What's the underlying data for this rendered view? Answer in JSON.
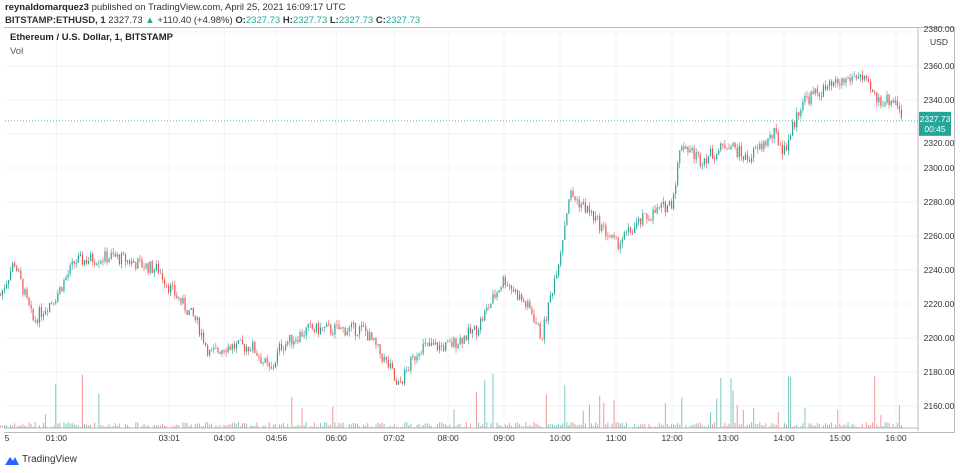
{
  "header": {
    "publisher": "reynaldomarquez3",
    "published_text": "published on TradingView.com, April 25, 2021 16:09:17 UTC",
    "symbol": "BITSTAMP:ETHUSD, 1",
    "last": "2327.73",
    "change": "+110.40 (+4.98%)",
    "o_label": "O:",
    "o": "2327.73",
    "h_label": "H:",
    "h": "2327.73",
    "l_label": "L:",
    "l": "2327.73",
    "c_label": "C:",
    "c": "2327.73"
  },
  "legend": {
    "title": "Ethereum / U.S. Dollar, 1, BITSTAMP",
    "vol": "Vol"
  },
  "price_tag": {
    "price": "2327.73",
    "countdown": "00:45"
  },
  "footer": {
    "brand": "TradingView"
  },
  "colors": {
    "up": "#26a69a",
    "down": "#ef5350",
    "grid": "#f0f3fa"
  },
  "chart_data": {
    "type": "candlestick",
    "title": "Ethereum / U.S. Dollar, 1, BITSTAMP",
    "currency_label": "USD",
    "ylim": [
      2145,
      2385
    ],
    "y_ticks": [
      "2380.00",
      "2360.00",
      "2340.00",
      "2320.00",
      "2300.00",
      "2280.00",
      "2260.00",
      "2240.00",
      "2220.00",
      "2200.00",
      "2180.00",
      "2160.00"
    ],
    "x_ticks": [
      "5",
      "01:00",
      "03:01",
      "04:00",
      "04:56",
      "06:00",
      "07:02",
      "08:00",
      "09:00",
      "10:00",
      "11:00",
      "12:00",
      "13:00",
      "14:00",
      "15:00",
      "16:00"
    ],
    "x_tick_minutes": [
      5,
      60,
      181,
      240,
      296,
      360,
      422,
      480,
      540,
      600,
      660,
      720,
      780,
      840,
      900,
      960
    ],
    "price_path": [
      [
        0,
        2225
      ],
      [
        15,
        2245
      ],
      [
        35,
        2210
      ],
      [
        60,
        2225
      ],
      [
        80,
        2245
      ],
      [
        120,
        2248
      ],
      [
        170,
        2240
      ],
      [
        181,
        2230
      ],
      [
        210,
        2210
      ],
      [
        225,
        2190
      ],
      [
        240,
        2195
      ],
      [
        270,
        2195
      ],
      [
        290,
        2180
      ],
      [
        300,
        2195
      ],
      [
        330,
        2205
      ],
      [
        360,
        2205
      ],
      [
        390,
        2205
      ],
      [
        420,
        2180
      ],
      [
        425,
        2170
      ],
      [
        450,
        2195
      ],
      [
        480,
        2195
      ],
      [
        510,
        2205
      ],
      [
        540,
        2235
      ],
      [
        570,
        2215
      ],
      [
        580,
        2200
      ],
      [
        600,
        2250
      ],
      [
        610,
        2285
      ],
      [
        630,
        2275
      ],
      [
        660,
        2255
      ],
      [
        690,
        2270
      ],
      [
        720,
        2280
      ],
      [
        730,
        2315
      ],
      [
        750,
        2305
      ],
      [
        770,
        2310
      ],
      [
        780,
        2315
      ],
      [
        800,
        2305
      ],
      [
        830,
        2320
      ],
      [
        840,
        2310
      ],
      [
        860,
        2340
      ],
      [
        880,
        2345
      ],
      [
        900,
        2350
      ],
      [
        920,
        2355
      ],
      [
        940,
        2340
      ],
      [
        960,
        2340
      ],
      [
        969,
        2327.73
      ]
    ],
    "last_price": 2327.73
  }
}
